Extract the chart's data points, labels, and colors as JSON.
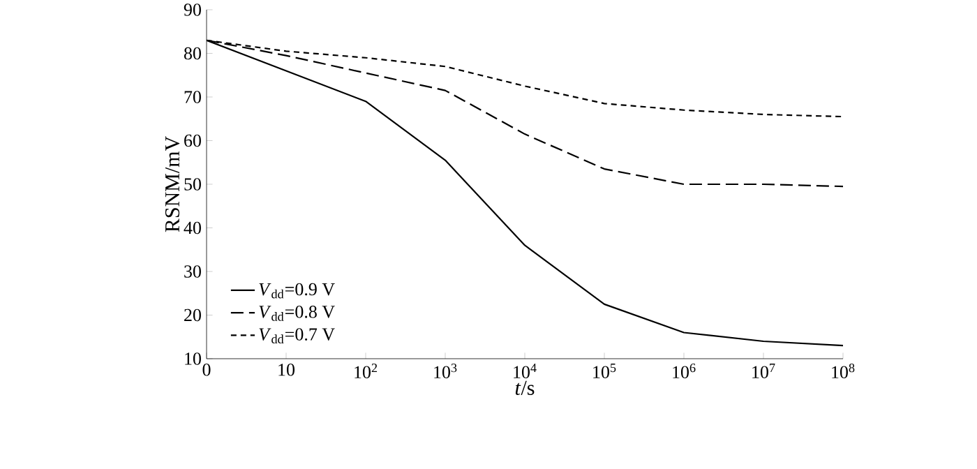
{
  "chart_data": {
    "type": "line",
    "xlabel": "*t*/s",
    "ylabel": "RSNM/mV",
    "categories": [
      "0",
      "10",
      "10$^{2}$",
      "10$^{3}$",
      "10$^{4}$",
      "10$^{5}$",
      "10$^{6}$",
      "10$^{7}$",
      "10$^{8}$"
    ],
    "ylim": [
      10,
      90
    ],
    "yticks": [
      10,
      20,
      30,
      40,
      50,
      60,
      70,
      80,
      90
    ],
    "grid": false,
    "legend": "bottom left",
    "marker": "none",
    "series": [
      {
        "name": "*V*$_{dd}$=0.9 V",
        "color": "#000000",
        "line_style": "solid",
        "values": [
          83,
          76,
          69,
          55.5,
          36,
          22.5,
          16,
          14,
          13
        ]
      },
      {
        "name": "*V*$_{dd}$=0.8 V",
        "color": "#000000",
        "line_style": "dashed",
        "values": [
          83,
          79.5,
          75.5,
          71.5,
          61.5,
          53.5,
          50,
          50,
          49.5
        ]
      },
      {
        "name": "*V*$_{dd}$=0.7 V",
        "color": "#000000",
        "line_style": "dotted",
        "values": [
          83,
          80.5,
          79,
          77,
          72.5,
          68.5,
          67,
          66,
          65.5
        ]
      }
    ]
  }
}
